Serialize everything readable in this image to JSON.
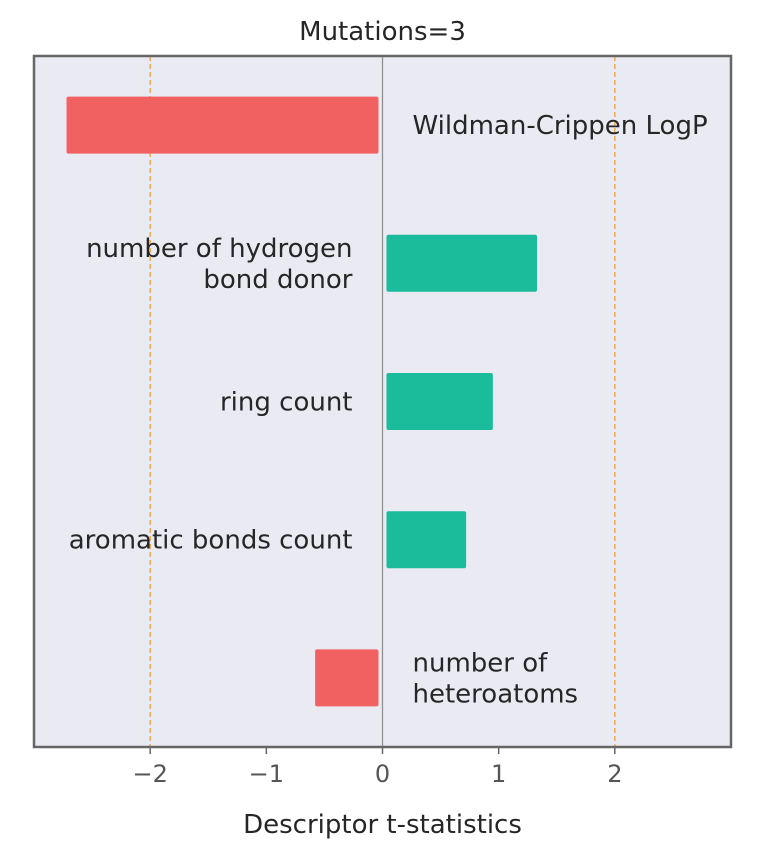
{
  "chart_data": {
    "type": "bar",
    "orientation": "horizontal",
    "title": "Mutations=3",
    "xlabel": "Descriptor t-statistics",
    "ylabel": "",
    "xlim": [
      -3,
      3
    ],
    "xticks": [
      {
        "value": -2,
        "label": "−2"
      },
      {
        "value": -1,
        "label": "−1"
      },
      {
        "value": 0,
        "label": "0"
      },
      {
        "value": 1,
        "label": "1"
      },
      {
        "value": 2,
        "label": "2"
      }
    ],
    "reference_lines": [
      -2,
      2
    ],
    "grid": false,
    "bars": [
      {
        "label_lines": [
          "Wildman-Crippen LogP"
        ],
        "value": -2.72
      },
      {
        "label_lines": [
          "number of hydrogen",
          "bond donor"
        ],
        "value": 1.33
      },
      {
        "label_lines": [
          "ring count"
        ],
        "value": 0.95
      },
      {
        "label_lines": [
          "aromatic bonds count"
        ],
        "value": 0.72
      },
      {
        "label_lines": [
          "number of",
          "heteroatoms"
        ],
        "value": -0.58
      }
    ],
    "colors": {
      "positive": "#1abc9c",
      "negative": "#f26161",
      "background": "#eaeaf2",
      "frame": "#666666",
      "zero_line": "#8c8c8c",
      "reference_line": "#f0a23c"
    }
  }
}
